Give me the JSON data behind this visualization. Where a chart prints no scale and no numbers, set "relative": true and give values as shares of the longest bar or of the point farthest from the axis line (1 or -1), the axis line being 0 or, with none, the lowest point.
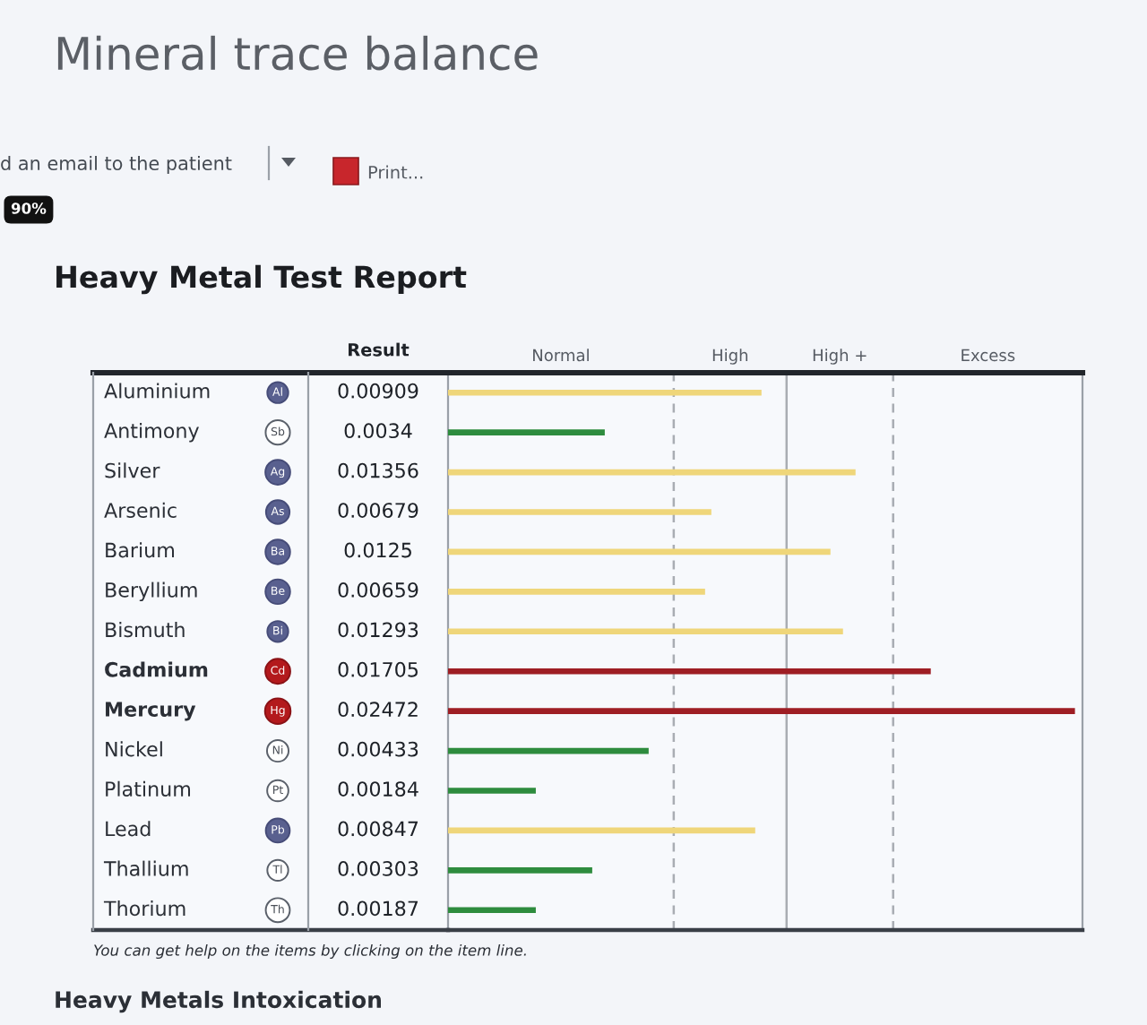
{
  "chart_data": {
    "type": "bar",
    "orientation": "horizontal",
    "relative": true,
    "title": "Mineral trace balance",
    "subtitle": "Heavy Metal Test Report",
    "categories": [
      "Aluminium",
      "Antimony",
      "Silver",
      "Arsenic",
      "Barium",
      "Beryllium",
      "Bismuth",
      "Cadmium",
      "Mercury",
      "Nickel",
      "Platinum",
      "Lead",
      "Thallium",
      "Thorium"
    ],
    "values": [
      0.5,
      0.25,
      0.65,
      0.42,
      0.61,
      0.41,
      0.63,
      0.77,
      1,
      0.32,
      0.14,
      0.49,
      0.23,
      0.14
    ],
    "colors": [
      "#efd67a",
      "#2e8c3e",
      "#efd67a",
      "#efd67a",
      "#efd67a",
      "#efd67a",
      "#efd67a",
      "#9e1e24",
      "#9e1e24",
      "#2e8c3e",
      "#2e8c3e",
      "#efd67a",
      "#2e8c3e",
      "#2e8c3e"
    ],
    "ref_lines": [
      {
        "axis": "x",
        "value": 0.36,
        "line_style": "dashed",
        "color": "#a9adb3"
      },
      {
        "axis": "x",
        "value": 0.54,
        "line_style": "solid",
        "color": "#a9adb3"
      },
      {
        "axis": "x",
        "value": 0.71,
        "line_style": "dashed",
        "color": "#a9adb3"
      }
    ],
    "annotations": [
      "d an email to the patient",
      "Print...",
      "90%",
      "Result",
      "You can get help on the items by clicking on the item line.",
      "Heavy Metals Intoxication",
      "Normal",
      "High",
      "High +",
      "Excess",
      "Al",
      "Sb",
      "Ag",
      "As",
      "Ba",
      "Be",
      "Bi",
      "Cd",
      "Hg",
      "Ni",
      "Pt",
      "Pb",
      "Tl",
      "Th",
      "0.00909",
      "0.0034",
      "0.01356",
      "0.00679",
      "0.0125",
      "0.00659",
      "0.01293",
      "0.01705",
      "0.02472",
      "0.00433",
      "0.00184",
      "0.00847",
      "0.00303",
      "0.00187"
    ]
  }
}
